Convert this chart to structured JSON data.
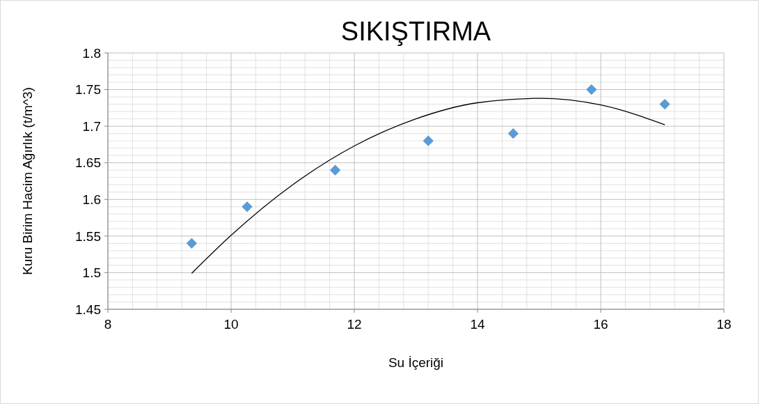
{
  "chart_data": {
    "type": "scatter",
    "title": "SIKIŞTIRMA",
    "xlabel": "Su İçeriği",
    "ylabel": "Kuru Birim Hacim Ağırlık (t/m^3)",
    "xlim": [
      8,
      18
    ],
    "xticks": [
      8,
      10,
      12,
      14,
      16,
      18
    ],
    "ylim": [
      1.45,
      1.8
    ],
    "yticks": [
      1.45,
      1.5,
      1.55,
      1.6,
      1.65,
      1.7,
      1.75,
      1.8
    ],
    "grid": true,
    "marker": "diamond",
    "series": [
      {
        "color": "#5b9bd5",
        "x": [
          9.36,
          10.26,
          11.69,
          13.2,
          14.58,
          15.85,
          17.04
        ],
        "values": [
          1.54,
          1.59,
          1.64,
          1.68,
          1.69,
          1.75,
          1.73
        ]
      },
      {
        "type": "line",
        "color": "#000000",
        "marker": "none",
        "x": [
          9.36,
          10,
          11,
          12,
          13,
          14,
          15,
          16,
          17.04
        ],
        "values": [
          1.499,
          1.551,
          1.62,
          1.673,
          1.71,
          1.732,
          1.738,
          1.729,
          1.702
        ]
      }
    ]
  }
}
